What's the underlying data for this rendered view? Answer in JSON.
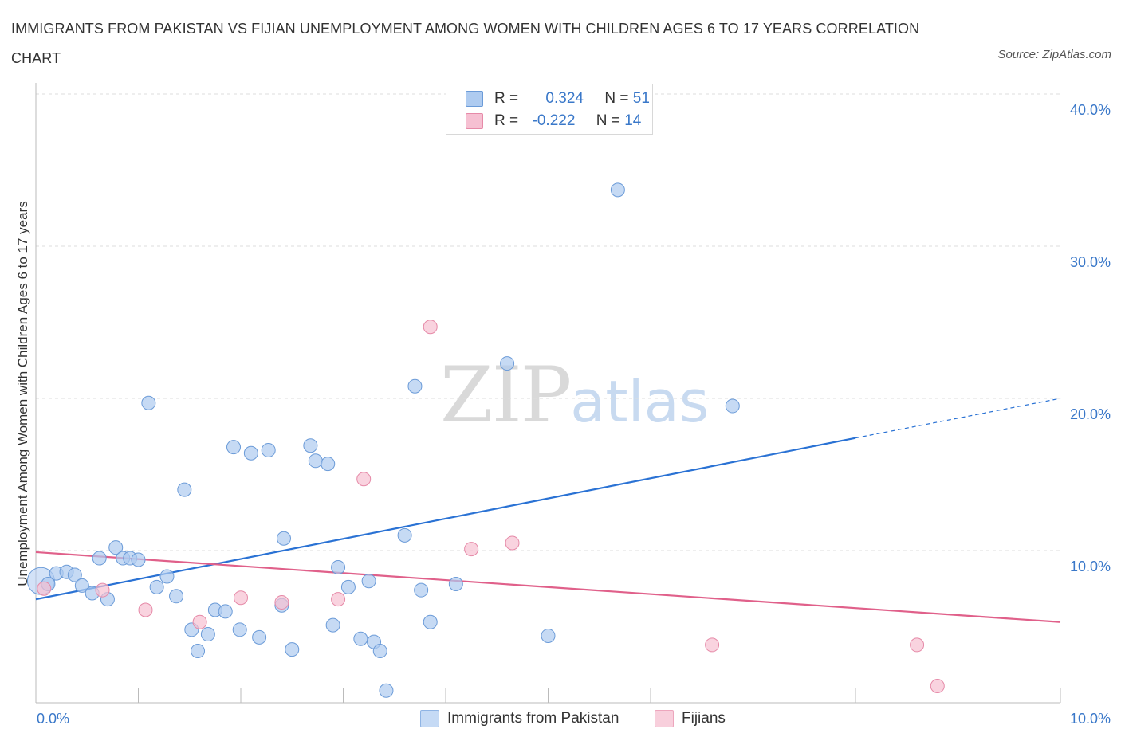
{
  "title": "IMMIGRANTS FROM PAKISTAN VS FIJIAN UNEMPLOYMENT AMONG WOMEN WITH CHILDREN AGES 6 TO 17 YEARS CORRELATION CHART",
  "source": "Source: ZipAtlas.com",
  "legend": {
    "rows": [
      {
        "r_label": "R =",
        "r_value": "0.324",
        "n_label": "N =",
        "n_value": "51",
        "color": "#aecbf0"
      },
      {
        "r_label": "R =",
        "r_value": "-0.222",
        "n_label": "N =",
        "n_value": "14",
        "color": "#f6c0d2"
      }
    ]
  },
  "watermark": {
    "zip": "ZIP",
    "atlas": "atlas"
  },
  "chart_data": {
    "type": "scatter",
    "title": "IMMIGRANTS FROM PAKISTAN VS FIJIAN UNEMPLOYMENT AMONG WOMEN WITH CHILDREN AGES 6 TO 17 YEARS CORRELATION CHART",
    "xlabel": "",
    "ylabel": "Unemployment Among Women with Children Ages 6 to 17 years",
    "xlim": [
      0,
      10
    ],
    "ylim": [
      0,
      40
    ],
    "x_tick_labels": [
      "0.0%",
      "10.0%"
    ],
    "y_tick_labels": [
      "10.0%",
      "20.0%",
      "30.0%",
      "40.0%"
    ],
    "y_ticks": [
      10,
      20,
      30,
      40
    ],
    "grid": true,
    "legend_position": "top-center",
    "series": [
      {
        "name": "Immigrants from Pakistan",
        "color": "#aecbf0",
        "stroke": "#6b9bd8",
        "line_color": "#2a72d4",
        "trend": {
          "x0": 0.0,
          "y0": 6.8,
          "x1": 8.0,
          "y1": 17.4,
          "dash_to_x": 10.0,
          "dash_to_y": 20.0
        },
        "points": [
          [
            0.05,
            8.0
          ],
          [
            0.12,
            7.8
          ],
          [
            0.2,
            8.5
          ],
          [
            0.3,
            8.6
          ],
          [
            0.38,
            8.4
          ],
          [
            0.45,
            7.7
          ],
          [
            0.55,
            7.2
          ],
          [
            0.62,
            9.5
          ],
          [
            0.7,
            6.8
          ],
          [
            0.78,
            10.2
          ],
          [
            0.85,
            9.5
          ],
          [
            0.92,
            9.5
          ],
          [
            1.0,
            9.4
          ],
          [
            1.1,
            19.7
          ],
          [
            1.18,
            7.6
          ],
          [
            1.28,
            8.3
          ],
          [
            1.37,
            7.0
          ],
          [
            1.45,
            14.0
          ],
          [
            1.52,
            4.8
          ],
          [
            1.58,
            3.4
          ],
          [
            1.68,
            4.5
          ],
          [
            1.75,
            6.1
          ],
          [
            1.85,
            6.0
          ],
          [
            1.93,
            16.8
          ],
          [
            1.99,
            4.8
          ],
          [
            2.1,
            16.4
          ],
          [
            2.18,
            4.3
          ],
          [
            2.27,
            16.6
          ],
          [
            2.4,
            6.4
          ],
          [
            2.42,
            10.8
          ],
          [
            2.5,
            3.5
          ],
          [
            2.68,
            16.9
          ],
          [
            2.73,
            15.9
          ],
          [
            2.85,
            15.7
          ],
          [
            2.9,
            5.1
          ],
          [
            2.95,
            8.9
          ],
          [
            3.05,
            7.6
          ],
          [
            3.17,
            4.2
          ],
          [
            3.25,
            8.0
          ],
          [
            3.3,
            4.0
          ],
          [
            3.36,
            3.4
          ],
          [
            3.42,
            0.8
          ],
          [
            3.6,
            11.0
          ],
          [
            3.7,
            20.8
          ],
          [
            3.76,
            7.4
          ],
          [
            3.85,
            5.3
          ],
          [
            4.1,
            7.8
          ],
          [
            4.6,
            22.3
          ],
          [
            5.0,
            4.4
          ],
          [
            5.68,
            33.7
          ],
          [
            6.8,
            19.5
          ]
        ]
      },
      {
        "name": "Fijians",
        "color": "#f6c0d2",
        "stroke": "#e68aa8",
        "line_color": "#e0608a",
        "trend": {
          "x0": 0.0,
          "y0": 9.9,
          "x1": 10.0,
          "y1": 5.3
        },
        "points": [
          [
            0.08,
            7.5
          ],
          [
            0.65,
            7.4
          ],
          [
            1.07,
            6.1
          ],
          [
            1.6,
            5.3
          ],
          [
            2.0,
            6.9
          ],
          [
            2.4,
            6.6
          ],
          [
            2.95,
            6.8
          ],
          [
            3.2,
            14.7
          ],
          [
            3.85,
            24.7
          ],
          [
            4.25,
            10.1
          ],
          [
            4.65,
            10.5
          ],
          [
            6.6,
            3.8
          ],
          [
            8.6,
            3.8
          ],
          [
            8.8,
            1.1
          ]
        ]
      }
    ]
  }
}
